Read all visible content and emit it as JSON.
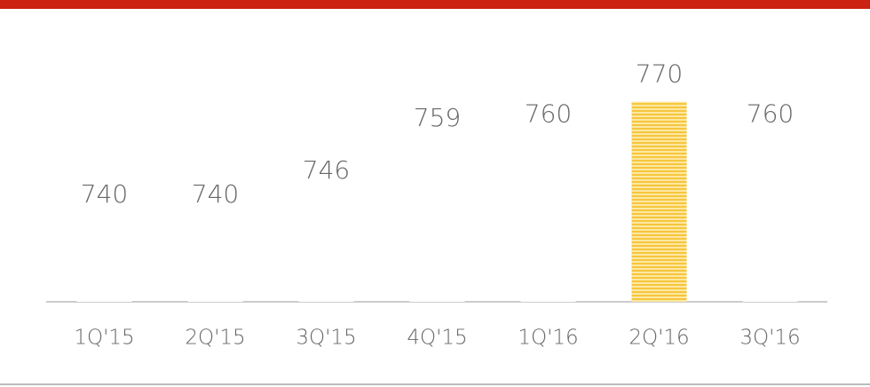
{
  "chart_data": {
    "type": "bar",
    "categories": [
      "1Q'15",
      "2Q'15",
      "3Q'15",
      "4Q'15",
      "1Q'16",
      "2Q'16",
      "3Q'16"
    ],
    "values": [
      740,
      740,
      746,
      759,
      760,
      770,
      760
    ],
    "colors": [
      "#ffffff",
      "#ffffff",
      "#ffffff",
      "#ffffff",
      "#ffffff",
      "#f6c63c",
      "#ffffff"
    ],
    "ylim": [
      720,
      775
    ]
  }
}
